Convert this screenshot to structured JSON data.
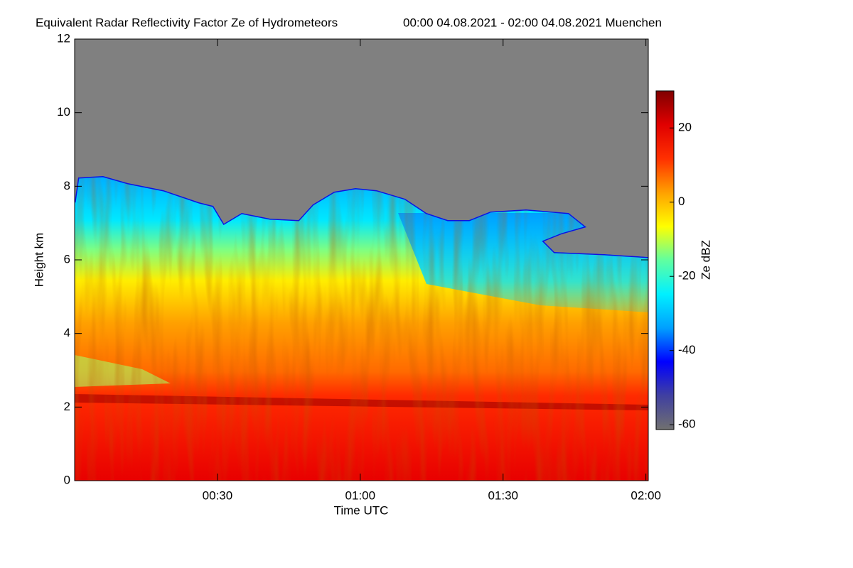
{
  "chart_data": {
    "type": "heatmap",
    "title": "Equivalent Radar Reflectivity Factor Ze of Hydrometeors",
    "subtitle": "00:00 04.08.2021 - 02:00 04.08.2021 Muenchen",
    "x_label": "Time UTC",
    "y_label": "Height km",
    "colorbar_label": "Ze dBZ",
    "xlim": [
      0,
      120.5
    ],
    "xticks": [
      {
        "value": 30,
        "label": "00:30"
      },
      {
        "value": 60,
        "label": "01:00"
      },
      {
        "value": 90,
        "label": "01:30"
      },
      {
        "value": 120,
        "label": "02:00"
      }
    ],
    "ylim": [
      0,
      12
    ],
    "yticks": [
      0,
      2,
      4,
      6,
      8,
      10,
      12
    ],
    "clim": [
      -61.3,
      30
    ],
    "cticks": [
      -60,
      -40,
      -20,
      0,
      20
    ],
    "colormap": [
      "#707070",
      "#4040a0",
      "#0000ff",
      "#00a0ff",
      "#00f0ff",
      "#60ffa0",
      "#ffff00",
      "#ffa000",
      "#ff3000",
      "#e00000",
      "#800000"
    ]
  }
}
